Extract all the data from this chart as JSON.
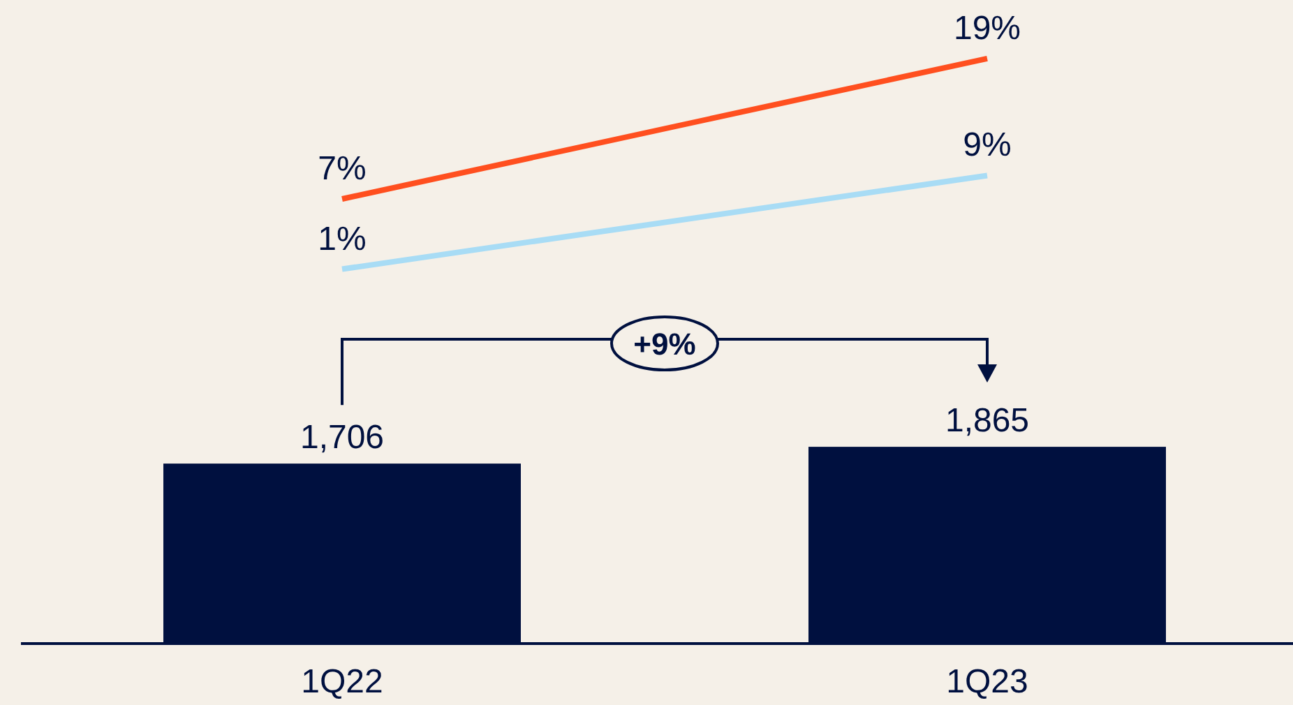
{
  "chart_data": {
    "type": "bar",
    "categories": [
      "1Q22",
      "1Q23"
    ],
    "tick_labels": "x",
    "ylim": [
      0,
      6100
    ],
    "y2lim": [
      -31,
      24
    ],
    "annotations": [
      "+9%"
    ],
    "series": [
      {
        "color": "#00103f",
        "values": [
          1706,
          1865
        ],
        "value_labels": [
          "1,706",
          "1,865"
        ]
      },
      {
        "type": "line",
        "axis": "y2",
        "color": "#ff4f1f",
        "values": [
          7,
          19
        ],
        "value_labels": [
          "7%",
          "19%"
        ]
      },
      {
        "type": "line",
        "axis": "y2",
        "color": "#a8dcf5",
        "values": [
          1,
          9
        ],
        "value_labels": [
          "1%",
          "9%"
        ]
      }
    ]
  }
}
